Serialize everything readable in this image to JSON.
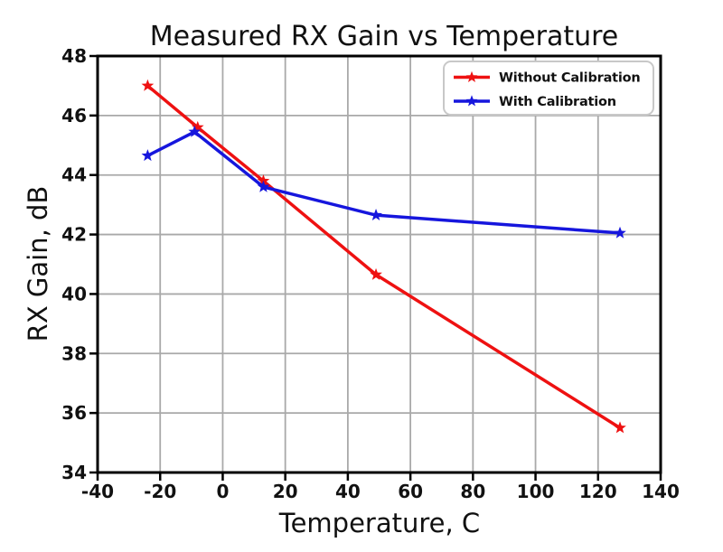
{
  "chart_data": {
    "type": "line",
    "title": "Measured RX Gain vs Temperature",
    "xlabel": "Temperature, C",
    "ylabel": "RX Gain, dB",
    "xlim": [
      -40,
      140
    ],
    "ylim": [
      34,
      48
    ],
    "xticks": [
      -40,
      -20,
      0,
      20,
      40,
      60,
      80,
      100,
      120,
      140
    ],
    "yticks": [
      34,
      36,
      38,
      40,
      42,
      44,
      46,
      48
    ],
    "grid": true,
    "legend_position": "top-right",
    "series": [
      {
        "name": "Without Calibration",
        "color": "#ee1111",
        "marker": "star",
        "x": [
          -24,
          -8,
          13,
          49,
          127
        ],
        "values": [
          47.0,
          45.6,
          43.8,
          40.65,
          35.5
        ]
      },
      {
        "name": "With Calibration",
        "color": "#1616dd",
        "marker": "star",
        "x": [
          -24,
          -9,
          13,
          49,
          127
        ],
        "values": [
          44.65,
          45.45,
          43.6,
          42.65,
          42.05
        ]
      }
    ],
    "colors": {
      "background": "#ffffff",
      "grid": "#a9a9a9",
      "axis": "#000000",
      "text": "#111111",
      "legend_border": "#c8c8c8",
      "legend_fill": "#ffffff"
    }
  }
}
